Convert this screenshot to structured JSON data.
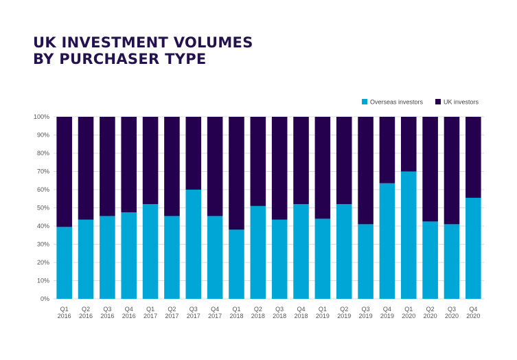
{
  "title_lines": [
    "UK INVESTMENT VOLUMES",
    "BY PURCHASER TYPE"
  ],
  "chart_data": {
    "type": "bar",
    "stacked": true,
    "title": "UK INVESTMENT VOLUMES BY PURCHASER TYPE",
    "categories": [
      [
        "Q1",
        "2016"
      ],
      [
        "Q2",
        "2016"
      ],
      [
        "Q3",
        "2016"
      ],
      [
        "Q4",
        "2016"
      ],
      [
        "Q1",
        "2017"
      ],
      [
        "Q2",
        "2017"
      ],
      [
        "Q3",
        "2017"
      ],
      [
        "Q4",
        "2017"
      ],
      [
        "Q1",
        "2018"
      ],
      [
        "Q2",
        "2018"
      ],
      [
        "Q3",
        "2018"
      ],
      [
        "Q4",
        "2018"
      ],
      [
        "Q1",
        "2019"
      ],
      [
        "Q2",
        "2019"
      ],
      [
        "Q3",
        "2019"
      ],
      [
        "Q4",
        "2019"
      ],
      [
        "Q1",
        "2020"
      ],
      [
        "Q2",
        "2020"
      ],
      [
        "Q3",
        "2020"
      ],
      [
        "Q4",
        "2020"
      ]
    ],
    "series": [
      {
        "name": "Overseas investors",
        "color": "#00a7d6",
        "values": [
          39.5,
          43.5,
          45.5,
          47.5,
          52,
          45.5,
          60,
          45.5,
          38,
          51,
          43.5,
          52,
          44,
          52,
          41,
          63.5,
          70,
          42.5,
          41,
          55.5
        ]
      },
      {
        "name": "UK investors",
        "color": "#24004f",
        "values": [
          60.5,
          56.5,
          54.5,
          52.5,
          48,
          54.5,
          40,
          54.5,
          62,
          49,
          56.5,
          48,
          56,
          48,
          59,
          36.5,
          30,
          57.5,
          59,
          44.5
        ]
      }
    ],
    "yticks": [
      "0%",
      "10%",
      "20%",
      "30%",
      "40%",
      "50%",
      "60%",
      "70%",
      "80%",
      "90%",
      "100%"
    ],
    "ylim": [
      0,
      100
    ],
    "grid": true,
    "legend_position": "top-right"
  }
}
